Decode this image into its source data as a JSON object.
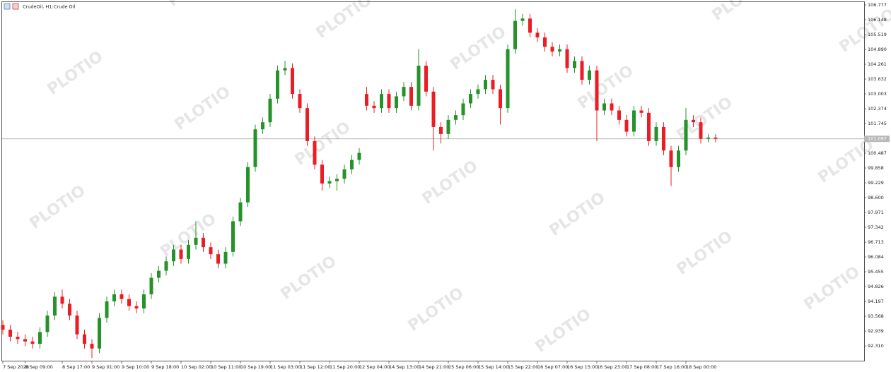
{
  "chart_data": {
    "type": "candlestick",
    "symbol": "CrudeOil, H1:",
    "description": "Crude Oil",
    "watermark": "PLOTIO",
    "up_color": "#26922a",
    "down_color": "#ec1c24",
    "current_price": {
      "value": 101.097,
      "label": "101.097"
    },
    "categories": [
      "7 Sep 2026",
      null,
      null,
      "8 Sep 09:00",
      null,
      null,
      null,
      null,
      "8 Sep 17:00",
      null,
      null,
      null,
      "9 Sep 01:00",
      null,
      null,
      null,
      "9 Sep 10:00",
      null,
      null,
      null,
      "9 Sep 18:00",
      null,
      null,
      null,
      "10 Sep 02:00",
      null,
      null,
      null,
      "10 Sep 11:00",
      null,
      null,
      null,
      "10 Sep 19:00",
      null,
      null,
      null,
      "11 Sep 03:00",
      null,
      null,
      null,
      "11 Sep 12:00",
      null,
      null,
      null,
      "11 Sep 20:00",
      null,
      null,
      null,
      "12 Sep 04:00",
      null,
      null,
      null,
      "14 Sep 13:00",
      null,
      null,
      null,
      "14 Sep 21:00",
      null,
      null,
      null,
      "15 Sep 06:00",
      null,
      null,
      null,
      "15 Sep 14:00",
      null,
      null,
      null,
      "15 Sep 22:00",
      null,
      null,
      null,
      "16 Sep 07:00",
      null,
      null,
      null,
      "16 Sep 15:00",
      null,
      null,
      null,
      "16 Sep 23:00",
      null,
      null,
      null,
      "17 Sep 08:00",
      null,
      null,
      null,
      "17 Sep 16:00",
      null,
      null,
      null,
      "18 Sep 00:00",
      null,
      null,
      null,
      null
    ],
    "open": [
      93.2,
      93.0,
      92.7,
      92.6,
      92.5,
      92.4,
      92.9,
      93.6,
      94.4,
      94.1,
      93.6,
      92.8,
      92.4,
      92.2,
      93.5,
      94.2,
      94.5,
      94.3,
      94.0,
      93.9,
      94.5,
      95.2,
      95.5,
      95.9,
      96.4,
      96.0,
      96.6,
      96.9,
      96.5,
      96.2,
      95.8,
      96.3,
      97.6,
      98.4,
      99.9,
      101.5,
      101.8,
      102.8,
      104.0,
      104.1,
      103.0,
      102.4,
      101.0,
      100.0,
      99.2,
      99.3,
      99.4,
      99.8,
      100.2,
      103.0,
      102.5,
      102.4,
      103.0,
      102.4,
      102.9,
      103.3,
      102.5,
      104.2,
      103.1,
      101.6,
      101.3,
      101.9,
      102.1,
      102.6,
      103.0,
      103.2,
      103.6,
      103.2,
      102.4,
      104.9,
      106.1,
      106.2,
      105.6,
      105.4,
      105.0,
      104.8,
      104.9,
      104.1,
      104.4,
      103.6,
      104.0,
      102.3,
      102.6,
      102.3,
      101.9,
      101.4,
      102.3,
      102.2,
      101.0,
      101.6,
      100.6,
      99.9,
      100.6,
      101.9,
      101.8,
      101.1,
      101.15
    ],
    "high": [
      93.4,
      93.2,
      92.9,
      92.8,
      92.7,
      93.1,
      93.8,
      94.6,
      94.7,
      94.3,
      93.8,
      93.0,
      92.6,
      93.7,
      94.4,
      94.7,
      94.7,
      94.5,
      94.2,
      94.7,
      95.4,
      95.7,
      96.1,
      96.6,
      96.6,
      96.8,
      97.6,
      97.1,
      96.7,
      96.4,
      96.5,
      97.8,
      98.6,
      100.1,
      101.7,
      102.0,
      103.0,
      104.2,
      104.4,
      104.3,
      103.2,
      102.6,
      101.2,
      100.2,
      99.5,
      99.6,
      100.0,
      100.4,
      100.7,
      103.3,
      102.7,
      103.2,
      103.2,
      103.1,
      103.5,
      103.5,
      104.9,
      104.4,
      103.3,
      101.8,
      102.1,
      102.3,
      102.8,
      103.2,
      103.4,
      103.8,
      103.8,
      103.4,
      105.1,
      106.6,
      106.4,
      106.4,
      105.8,
      105.6,
      105.2,
      105.1,
      105.1,
      104.6,
      104.6,
      104.2,
      104.2,
      102.8,
      102.8,
      102.5,
      102.1,
      102.5,
      102.5,
      102.4,
      101.8,
      101.8,
      100.8,
      100.8,
      102.4,
      102.1,
      102.0,
      101.3,
      101.3
    ],
    "low": [
      92.8,
      92.5,
      92.4,
      92.3,
      92.2,
      92.2,
      92.7,
      93.4,
      93.9,
      93.4,
      92.6,
      92.2,
      91.8,
      92.0,
      93.3,
      94.0,
      94.1,
      93.8,
      93.7,
      93.7,
      94.3,
      95.0,
      95.3,
      95.7,
      95.8,
      95.8,
      96.4,
      96.3,
      96.0,
      95.6,
      95.6,
      96.1,
      97.4,
      98.2,
      99.7,
      101.3,
      101.6,
      102.6,
      103.8,
      102.8,
      102.2,
      100.8,
      99.8,
      98.9,
      99.0,
      98.9,
      99.2,
      99.6,
      100.0,
      102.3,
      102.2,
      102.2,
      102.2,
      102.2,
      102.7,
      102.3,
      102.3,
      102.9,
      100.6,
      100.9,
      101.1,
      101.7,
      101.9,
      102.4,
      102.8,
      103.0,
      103.0,
      101.7,
      102.2,
      104.7,
      105.9,
      105.4,
      105.2,
      104.8,
      104.6,
      104.6,
      103.9,
      103.9,
      103.4,
      103.4,
      101.0,
      102.1,
      102.1,
      101.7,
      101.2,
      101.2,
      102.0,
      100.8,
      100.8,
      100.4,
      99.1,
      99.7,
      100.4,
      101.6,
      100.9,
      100.95,
      100.95
    ],
    "close": [
      93.0,
      92.7,
      92.6,
      92.5,
      92.4,
      92.9,
      93.6,
      94.4,
      94.1,
      93.6,
      92.8,
      92.4,
      92.2,
      93.5,
      94.2,
      94.5,
      94.3,
      94.0,
      93.9,
      94.5,
      95.2,
      95.5,
      95.9,
      96.4,
      96.0,
      96.6,
      96.9,
      96.5,
      96.2,
      95.8,
      96.3,
      97.6,
      98.4,
      99.9,
      101.5,
      101.8,
      102.8,
      104.0,
      104.1,
      103.0,
      102.4,
      101.0,
      100.0,
      99.2,
      99.3,
      99.4,
      99.8,
      100.2,
      100.5,
      102.5,
      102.4,
      103.0,
      102.4,
      102.9,
      103.3,
      102.5,
      104.2,
      103.1,
      101.6,
      101.3,
      101.9,
      102.1,
      102.6,
      103.0,
      103.2,
      103.6,
      103.2,
      102.4,
      104.9,
      106.1,
      106.2,
      105.6,
      105.4,
      105.0,
      104.8,
      104.9,
      104.1,
      104.4,
      103.6,
      104.0,
      102.3,
      102.6,
      102.3,
      101.9,
      101.4,
      102.3,
      102.2,
      101.0,
      101.6,
      100.6,
      99.9,
      100.6,
      101.9,
      101.8,
      101.1,
      101.15,
      101.1
    ],
    "ylim": [
      91.653,
      106.927
    ],
    "yticks": [
      106.777,
      106.148,
      105.519,
      {
        "value": 104.89,
        "label": "104.890"
      },
      104.261,
      103.632,
      103.003,
      102.374,
      101.745,
      100.487,
      99.858,
      99.229,
      {
        "value": 98.6,
        "label": "98.600"
      },
      97.971,
      97.342,
      96.713,
      96.084,
      95.455,
      94.826,
      94.197,
      93.568,
      92.939,
      {
        "value": 92.31,
        "label": "92.310"
      }
    ]
  }
}
